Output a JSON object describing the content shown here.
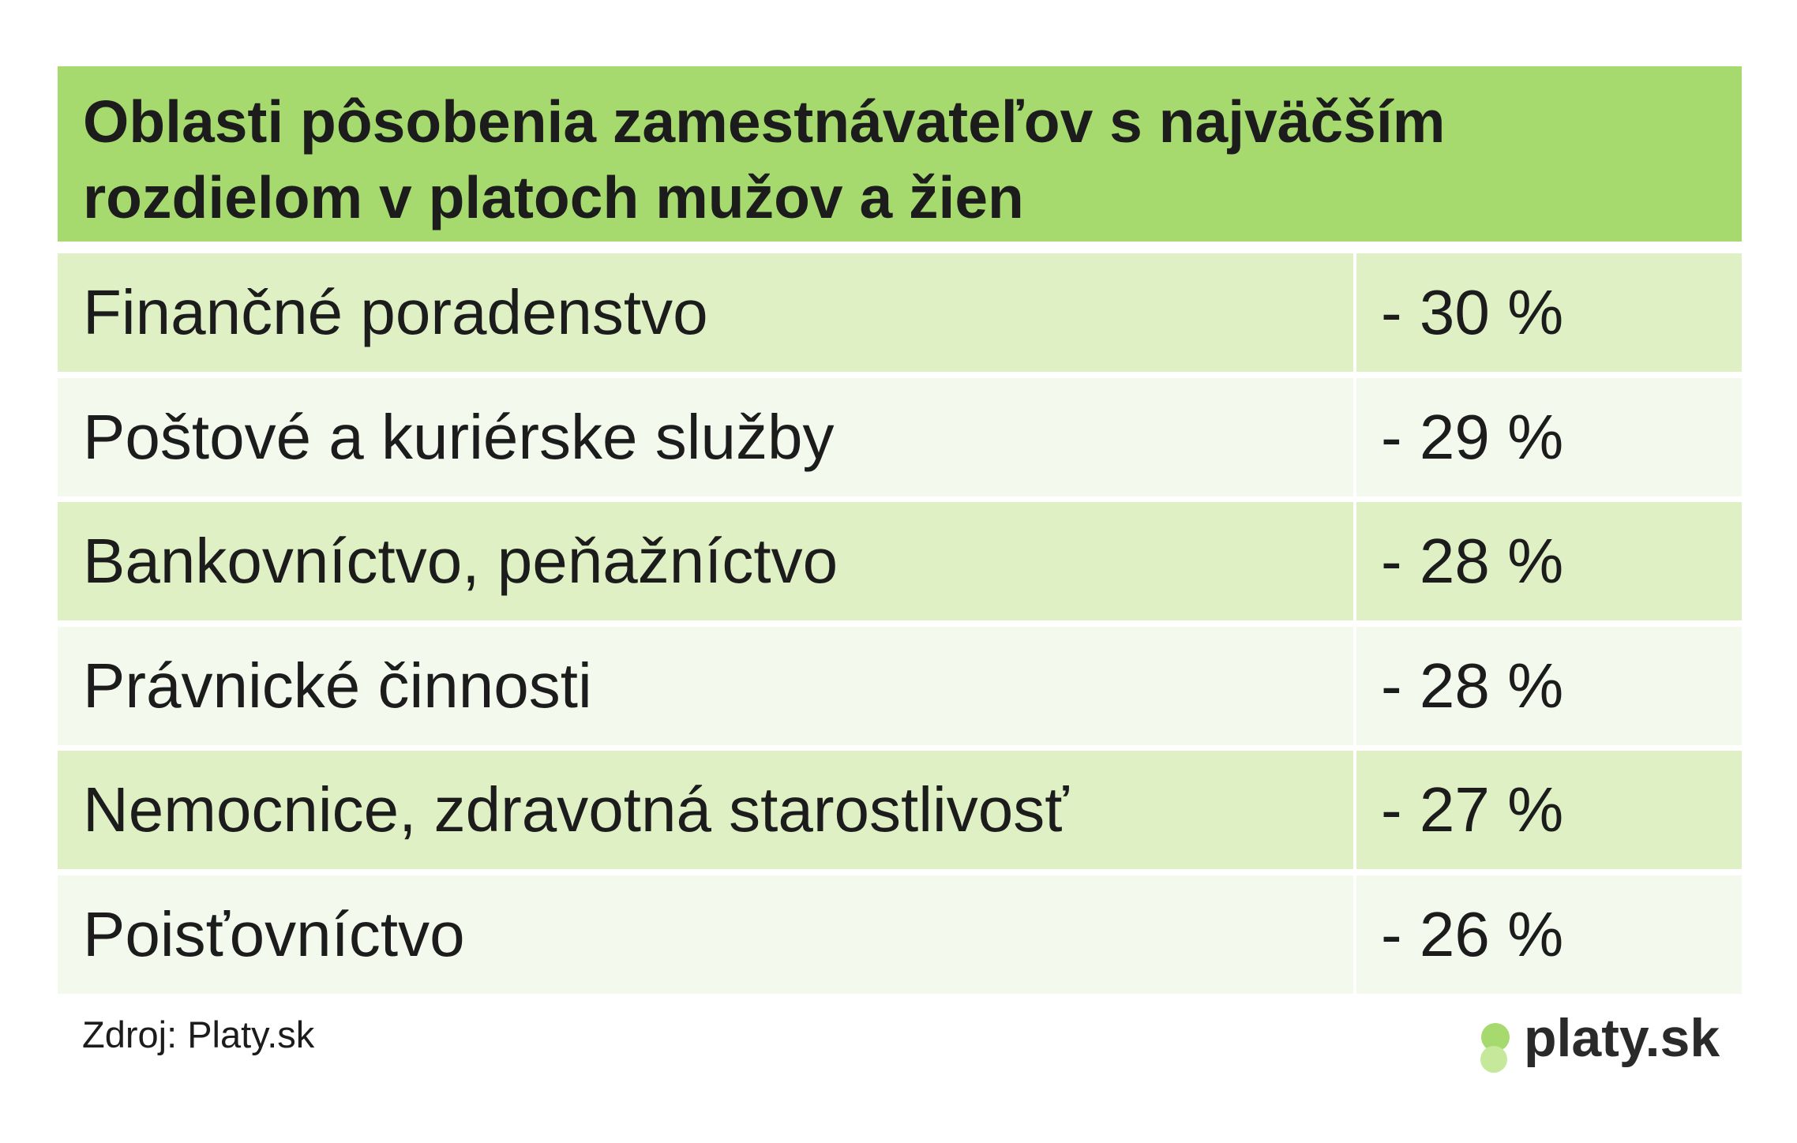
{
  "header": {
    "title_lines": [
      "Oblasti pôsobenia zamestnávateľov s najväčším",
      "rozdielom v platoch mužov a žien"
    ]
  },
  "table": {
    "rows": [
      [
        "Finančné poradenstvo",
        "- 30 %"
      ],
      [
        "Poštové a kuriérske služby",
        "- 29 %"
      ],
      [
        "Bankovníctvo, peňažníctvo",
        "- 28 %"
      ],
      [
        "Právnické činnosti",
        "- 28 %"
      ],
      [
        "Nemocnice, zdravotná starostlivosť",
        "- 27 %"
      ],
      [
        "Poisťovníctvo",
        "- 26 %"
      ]
    ]
  },
  "footer": {
    "source": "Zdroj: Platy.sk",
    "logo": "platy.sk"
  }
}
